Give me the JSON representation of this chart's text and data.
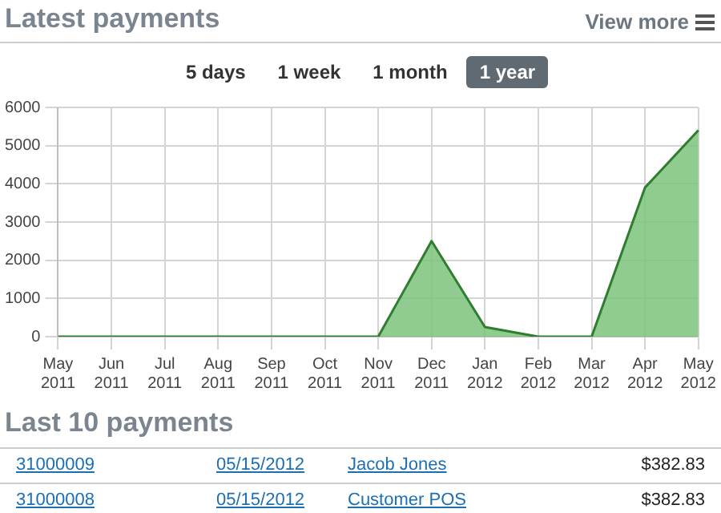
{
  "chart_data": {
    "type": "area",
    "title": "Latest payments",
    "categories": [
      "May 2011",
      "Jun 2011",
      "Jul 2011",
      "Aug 2011",
      "Sep 2011",
      "Oct 2011",
      "Nov 2011",
      "Dec 2011",
      "Jan 2012",
      "Feb 2012",
      "Mar 2012",
      "Apr 2012",
      "May 2012"
    ],
    "series": [
      {
        "color": "#2f7d2f",
        "values": [
          0,
          0,
          0,
          0,
          0,
          0,
          0,
          2500,
          250,
          0,
          0,
          3900,
          5400
        ]
      }
    ],
    "ylim": [
      0,
      6000
    ],
    "yticks": [
      0,
      1000,
      2000,
      3000,
      4000,
      5000,
      6000
    ],
    "grid": true,
    "legend": false,
    "marker": "none",
    "annotations": [
      "View more",
      "5 days",
      "1 week",
      "1 month",
      "1 year",
      "Last 10 payments",
      "31000009",
      "05/15/2012",
      "Jacob Jones",
      "$382.83",
      "31000008",
      "05/15/2012",
      "Customer POS",
      "$382.83"
    ]
  }
}
